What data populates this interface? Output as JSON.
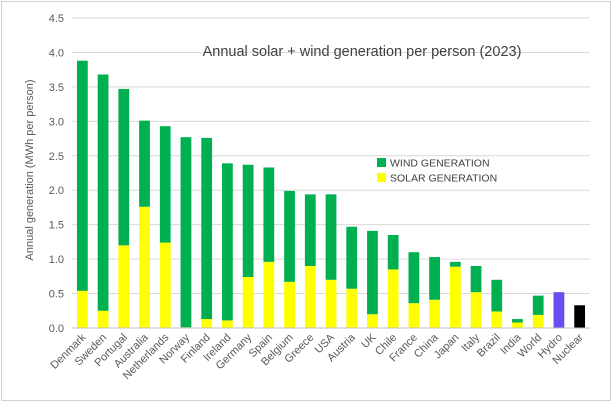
{
  "chart_data": {
    "type": "bar",
    "stacked": true,
    "title": "Annual solar + wind generation per person (2023)",
    "ylabel": "Annual generation (MWh per person)",
    "xlabel": "",
    "ylim": [
      0,
      4.5
    ],
    "yticks": [
      "0.0",
      "0.5",
      "1.0",
      "1.5",
      "2.0",
      "2.5",
      "3.0",
      "3.5",
      "4.0",
      "4.5"
    ],
    "grid": "horizontal",
    "legend_position": "center-right",
    "categories": [
      "Denmark",
      "Sweden",
      "Portugal",
      "Australia",
      "Netherlands",
      "Norway",
      "Finland",
      "Ireland",
      "Germany",
      "Spain",
      "Belgium",
      "Greece",
      "USA",
      "Austria",
      "UK",
      "Chile",
      "France",
      "China",
      "Japan",
      "Italy",
      "Brazil",
      "India",
      "World",
      "Hydro",
      "Nuclear"
    ],
    "series": [
      {
        "name": "SOLAR GENERATION",
        "color": "#ffff00",
        "values": [
          0.54,
          0.25,
          1.2,
          1.76,
          1.24,
          0.01,
          0.13,
          0.11,
          0.74,
          0.96,
          0.67,
          0.9,
          0.7,
          0.57,
          0.2,
          0.85,
          0.36,
          0.41,
          0.89,
          0.52,
          0.24,
          0.08,
          0.19,
          0,
          0
        ]
      },
      {
        "name": "WIND GENERATION",
        "color": "#00b050",
        "values": [
          3.34,
          3.43,
          2.27,
          1.25,
          1.69,
          2.76,
          2.63,
          2.28,
          1.63,
          1.37,
          1.32,
          1.04,
          1.24,
          0.9,
          1.21,
          0.5,
          0.74,
          0.62,
          0.07,
          0.38,
          0.46,
          0.05,
          0.28,
          0,
          0
        ]
      },
      {
        "name": "",
        "color": "#6a4cf0",
        "values": [
          0,
          0,
          0,
          0,
          0,
          0,
          0,
          0,
          0,
          0,
          0,
          0,
          0,
          0,
          0,
          0,
          0,
          0,
          0,
          0,
          0,
          0,
          0,
          0.52,
          0
        ]
      },
      {
        "name": "",
        "color": "#000000",
        "values": [
          0,
          0,
          0,
          0,
          0,
          0,
          0,
          0,
          0,
          0,
          0,
          0,
          0,
          0,
          0,
          0,
          0,
          0,
          0,
          0,
          0,
          0,
          0,
          0,
          0.33
        ]
      }
    ],
    "legend": [
      {
        "label": "WIND GENERATION",
        "color": "#00b050"
      },
      {
        "label": "SOLAR GENERATION",
        "color": "#ffff00"
      }
    ]
  }
}
